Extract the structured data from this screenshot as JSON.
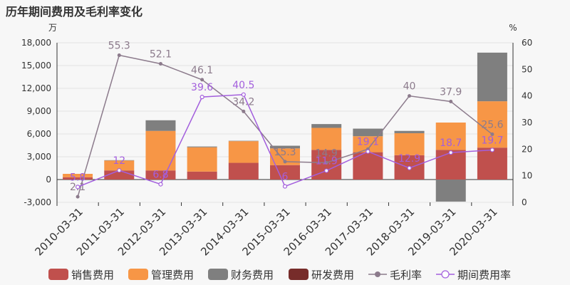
{
  "chart_title": "历年期间费用及毛利率变化",
  "chart_data": {
    "type": "bar",
    "categories": [
      "2010-03-31",
      "2011-03-31",
      "2012-03-31",
      "2013-03-31",
      "2014-03-31",
      "2015-03-31",
      "2016-03-31",
      "2017-03-31",
      "2018-03-31",
      "2019-03-31",
      "2020-03-31"
    ],
    "left_axis": {
      "unit": "万",
      "ylim": [
        -3000,
        18000
      ],
      "ticks": [
        -3000,
        0,
        3000,
        6000,
        9000,
        12000,
        15000,
        18000
      ]
    },
    "right_axis": {
      "unit": "%",
      "ylim": [
        0,
        60
      ],
      "ticks": [
        0,
        10,
        20,
        30,
        40,
        50,
        60
      ]
    },
    "grid": true,
    "legend_position": "bottom",
    "bar_series": [
      {
        "name": "销售费用",
        "color": "#c0504d",
        "values": [
          300,
          1200,
          1200,
          1050,
          2200,
          1900,
          3900,
          3600,
          3200,
          3900,
          4200
        ]
      },
      {
        "name": "管理费用",
        "color": "#f79646",
        "values": [
          450,
          1300,
          5200,
          3200,
          2850,
          2200,
          2900,
          2100,
          2900,
          3600,
          6100
        ]
      },
      {
        "name": "财务费用",
        "color": "#7f7f7f",
        "values": [
          0,
          50,
          1400,
          100,
          50,
          350,
          500,
          1000,
          300,
          -2900,
          6400
        ]
      },
      {
        "name": "研发费用",
        "color": "#772c2a",
        "values": [
          0,
          0,
          0,
          0,
          0,
          0,
          0,
          0,
          0,
          0,
          0
        ]
      }
    ],
    "line_series": [
      {
        "name": "毛利率",
        "color": "#8c7b8c",
        "marker": "filled",
        "values": [
          2.1,
          55.3,
          52.1,
          46.1,
          34.2,
          15.3,
          14.9,
          20.0,
          40,
          37.9,
          25.6
        ],
        "labels": [
          "2.1",
          "55.3",
          "52.1",
          "46.1",
          "34.2",
          "15.3",
          "14.9",
          "",
          "40",
          "37.9",
          "25.6"
        ]
      },
      {
        "name": "期间费用率",
        "color": "#a35fdd",
        "marker": "hollow",
        "values": [
          5.8,
          12,
          6.8,
          39.6,
          40.5,
          6,
          11.9,
          19.1,
          12.9,
          18.7,
          19.7
        ],
        "labels": [
          "5.8",
          "12",
          "6.8",
          "39.6",
          "40.5",
          "6",
          "11.9",
          "19.1",
          "12.9",
          "18.7",
          "19.7"
        ]
      }
    ]
  }
}
